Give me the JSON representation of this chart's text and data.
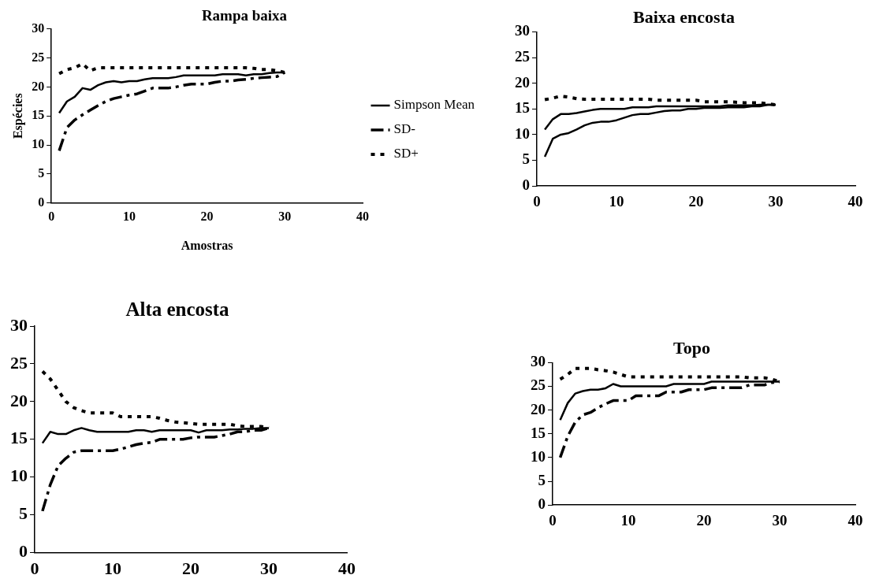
{
  "chart_data": [
    {
      "type": "line",
      "title": "Rampa baixa",
      "xlabel": "Amostras",
      "ylabel": "Espécies",
      "xlim": [
        0,
        40
      ],
      "xticks": [
        0,
        10,
        20,
        30,
        40
      ],
      "ylim": [
        0,
        30
      ],
      "yticks": [
        0,
        5,
        10,
        15,
        20,
        25,
        30
      ],
      "grid": false,
      "legend": "right",
      "marker": "none",
      "x": [
        1,
        2,
        3,
        4,
        5,
        6,
        7,
        8,
        9,
        10,
        11,
        12,
        13,
        14,
        15,
        16,
        17,
        18,
        19,
        20,
        21,
        22,
        23,
        24,
        25,
        26,
        27,
        28,
        29,
        30
      ],
      "series": [
        {
          "name": "Simpson Mean",
          "color": "#000000",
          "line_style": "solid",
          "values": [
            15.5,
            17.5,
            18.3,
            19.8,
            19.5,
            20.3,
            20.8,
            21,
            20.8,
            21,
            21,
            21.3,
            21.5,
            21.5,
            21.5,
            21.7,
            22,
            22,
            22,
            22,
            22,
            22.2,
            22.2,
            22.2,
            22,
            22.2,
            22.2,
            22.4,
            22.5,
            22.5
          ]
        },
        {
          "name": "SD-",
          "color": "#000000",
          "line_style": "dashed",
          "values": [
            9,
            13,
            14.3,
            15.2,
            16,
            16.8,
            17.5,
            18,
            18.3,
            18.6,
            18.8,
            19.3,
            19.8,
            19.8,
            19.8,
            20,
            20.3,
            20.5,
            20.5,
            20.5,
            20.8,
            21,
            21,
            21.2,
            21.3,
            21.5,
            21.6,
            21.7,
            21.8,
            22.5
          ]
        },
        {
          "name": "SD+",
          "color": "#000000",
          "line_style": "dotted",
          "values": [
            22.3,
            23,
            23.3,
            24,
            22.8,
            23.3,
            23.3,
            23.3,
            23.3,
            23.3,
            23.3,
            23.3,
            23.3,
            23.3,
            23.3,
            23.3,
            23.3,
            23.3,
            23.3,
            23.3,
            23.3,
            23.3,
            23.3,
            23.3,
            23.3,
            23.2,
            23,
            23,
            22.8,
            22.5
          ]
        }
      ]
    },
    {
      "type": "line",
      "title": "Baixa encosta",
      "xlim": [
        0,
        40
      ],
      "xticks": [
        0,
        10,
        20,
        30,
        40
      ],
      "ylim": [
        0,
        30
      ],
      "yticks": [
        0,
        5,
        10,
        15,
        20,
        25,
        30
      ],
      "grid": false,
      "legend": false,
      "marker": "none",
      "x": [
        1,
        2,
        3,
        4,
        5,
        6,
        7,
        8,
        9,
        10,
        11,
        12,
        13,
        14,
        15,
        16,
        17,
        18,
        19,
        20,
        21,
        22,
        23,
        24,
        25,
        26,
        27,
        28,
        29,
        30
      ],
      "series": [
        {
          "color": "#000000",
          "line_style": "solid",
          "values": [
            11,
            13,
            14,
            14,
            14.2,
            14.5,
            14.8,
            15,
            15,
            15,
            15,
            15.3,
            15.3,
            15.3,
            15.5,
            15.5,
            15.5,
            15.5,
            15.5,
            15.5,
            15.5,
            15.5,
            15.5,
            15.7,
            15.7,
            15.7,
            15.7,
            15.8,
            15.8,
            15.8
          ]
        },
        {
          "color": "#000000",
          "line_style": "solid",
          "values": [
            5.7,
            9.2,
            10,
            10.3,
            11,
            11.8,
            12.3,
            12.5,
            12.5,
            12.8,
            13.3,
            13.8,
            14,
            14,
            14.3,
            14.6,
            14.7,
            14.7,
            15,
            15,
            15.2,
            15.2,
            15.2,
            15.3,
            15.3,
            15.3,
            15.5,
            15.5,
            15.8,
            15.8
          ]
        },
        {
          "color": "#000000",
          "line_style": "dotted",
          "values": [
            16.8,
            17.1,
            17.5,
            17.3,
            17,
            16.9,
            16.9,
            16.9,
            16.9,
            16.9,
            16.9,
            16.9,
            16.9,
            16.9,
            16.7,
            16.7,
            16.7,
            16.7,
            16.7,
            16.7,
            16.4,
            16.4,
            16.4,
            16.4,
            16.3,
            16.2,
            16.2,
            16.2,
            16,
            15.8
          ]
        }
      ]
    },
    {
      "type": "line",
      "title": "Alta encosta",
      "xlim": [
        0,
        40
      ],
      "xticks": [
        0,
        10,
        20,
        30,
        40
      ],
      "ylim": [
        0,
        30
      ],
      "yticks": [
        0,
        5,
        10,
        15,
        20,
        25,
        30
      ],
      "grid": false,
      "legend": false,
      "marker": "none",
      "x": [
        1,
        2,
        3,
        4,
        5,
        6,
        7,
        8,
        9,
        10,
        11,
        12,
        13,
        14,
        15,
        16,
        17,
        18,
        19,
        20,
        21,
        22,
        23,
        24,
        25,
        26,
        27,
        28,
        29,
        30
      ],
      "series": [
        {
          "color": "#000000",
          "line_style": "solid",
          "values": [
            14.5,
            16,
            15.7,
            15.7,
            16.2,
            16.5,
            16.2,
            16,
            16,
            16,
            16,
            16,
            16.2,
            16.2,
            16,
            16.2,
            16.2,
            16.2,
            16.2,
            16.2,
            15.9,
            16.2,
            16.2,
            16.2,
            16.3,
            16.3,
            16.4,
            16.4,
            16.5,
            16.5
          ]
        },
        {
          "color": "#000000",
          "line_style": "dashed",
          "values": [
            5.5,
            9,
            11.5,
            12.5,
            13.3,
            13.5,
            13.5,
            13.5,
            13.5,
            13.5,
            13.7,
            14,
            14.3,
            14.5,
            14.6,
            15,
            15,
            15,
            15,
            15.2,
            15.3,
            15.3,
            15.3,
            15.5,
            15.7,
            16,
            16,
            16.2,
            16.2,
            16.5
          ]
        },
        {
          "color": "#000000",
          "line_style": "dotted",
          "values": [
            24,
            23,
            21.5,
            20,
            19.2,
            18.8,
            18.5,
            18.5,
            18.5,
            18.5,
            18,
            18,
            18,
            18,
            18,
            17.8,
            17.5,
            17.3,
            17.2,
            17.1,
            17,
            17,
            17,
            17,
            17,
            16.8,
            16.7,
            16.7,
            16.7,
            16.5
          ]
        }
      ]
    },
    {
      "type": "line",
      "title": "Topo",
      "xlim": [
        0,
        40
      ],
      "xticks": [
        0,
        10,
        20,
        30,
        40
      ],
      "ylim": [
        0,
        30
      ],
      "yticks": [
        0,
        5,
        10,
        15,
        20,
        25,
        30
      ],
      "grid": false,
      "legend": false,
      "marker": "none",
      "x": [
        1,
        2,
        3,
        4,
        5,
        6,
        7,
        8,
        9,
        10,
        11,
        12,
        13,
        14,
        15,
        16,
        17,
        18,
        19,
        20,
        21,
        22,
        23,
        24,
        25,
        26,
        27,
        28,
        29,
        30
      ],
      "series": [
        {
          "color": "#000000",
          "line_style": "solid",
          "values": [
            17.9,
            21.5,
            23.5,
            24,
            24.3,
            24.3,
            24.6,
            25.5,
            25,
            25,
            25,
            25,
            25,
            25,
            25,
            25.5,
            25.5,
            25.5,
            25.5,
            25.5,
            26,
            26,
            26,
            26,
            26,
            26,
            26,
            26,
            26,
            26
          ]
        },
        {
          "color": "#000000",
          "line_style": "dashed",
          "values": [
            10,
            14.5,
            17.5,
            19,
            19.5,
            20.5,
            21.3,
            22,
            22,
            22,
            23,
            23,
            23,
            23,
            23.8,
            23.8,
            23.8,
            24.3,
            24.3,
            24.3,
            24.7,
            24.7,
            24.7,
            24.7,
            24.7,
            25.3,
            25.3,
            25.3,
            25.8,
            26
          ]
        },
        {
          "color": "#000000",
          "line_style": "dotted",
          "values": [
            26.5,
            27.5,
            28.8,
            28.8,
            28.8,
            28.5,
            28.3,
            28,
            27.5,
            27,
            27,
            27,
            27,
            27,
            27,
            27,
            27,
            27,
            27,
            27,
            27,
            27,
            27,
            27,
            27,
            26.8,
            26.8,
            26.8,
            26.5,
            26
          ]
        }
      ]
    }
  ]
}
